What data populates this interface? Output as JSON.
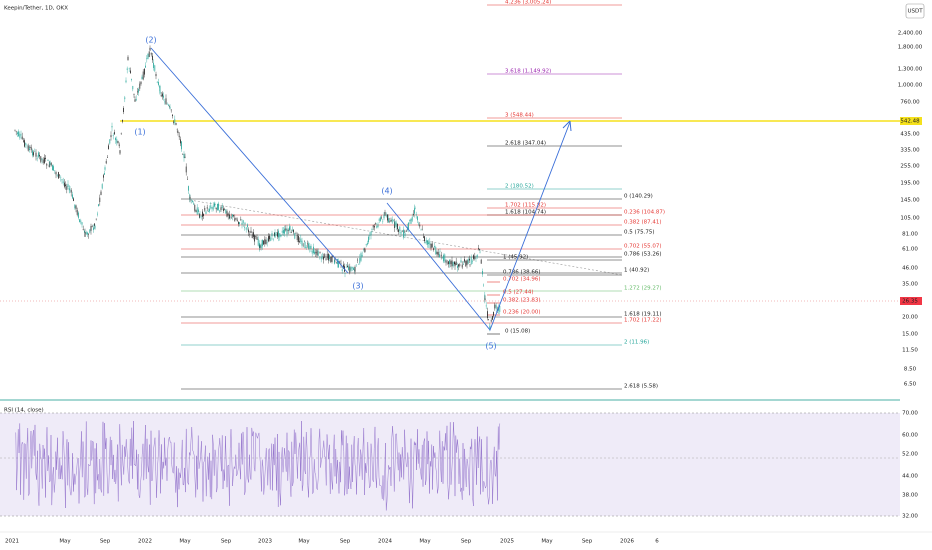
{
  "header": {
    "title": "Keepin/Tether, 1D, OKX",
    "currency": "USDT"
  },
  "price_axis": [
    "2,400.00",
    "1,800.00",
    "1,300.00",
    "1,000.00",
    "760.00",
    "542.48",
    "435.00",
    "335.00",
    "255.00",
    "195.00",
    "145.00",
    "105.00",
    "81.00",
    "61.00",
    "46.00",
    "35.00",
    "26.35",
    "20.00",
    "15.00",
    "11.50",
    "8.50",
    "6.50"
  ],
  "rsi": {
    "label": "RSI (14, close)",
    "axis": [
      "70.00",
      "60.00",
      "52.00",
      "44.00",
      "38.00",
      "32.00"
    ]
  },
  "time_axis": [
    "2021",
    "May",
    "Sep",
    "2022",
    "May",
    "Sep",
    "2023",
    "May",
    "Sep",
    "2024",
    "May",
    "Sep",
    "2025",
    "May",
    "Sep",
    "2026",
    "6"
  ],
  "waves": [
    "(1)",
    "(2)",
    "(3)",
    "(4)",
    "(5)"
  ],
  "fib_labels": [
    "4.236 (3,005.24)",
    "3.618 (1,149.92)",
    "3 (548.44)",
    "2.618 (347.04)",
    "2 (180.52)",
    "0 (140.29)",
    "1.702 (115.82)",
    "1.618 (104.74)",
    "0.236 (104.87)",
    "0.382 (87.41)",
    "0.5 (75.75)",
    "0.702 (55.07)",
    "0.786 (53.26)",
    "1 (45.92)",
    "1 (40.92)",
    "0.786 (38.66)",
    "0.702 (34.96)",
    "1.272 (29.27)",
    "0.5 (27.44)",
    "0.382 (23.83)",
    "0.236 (20.00)",
    "1.618 (19.11)",
    "1.702 (17.22)",
    "0 (15.08)",
    "2 (11.96)",
    "2.618 (5.58)"
  ]
}
